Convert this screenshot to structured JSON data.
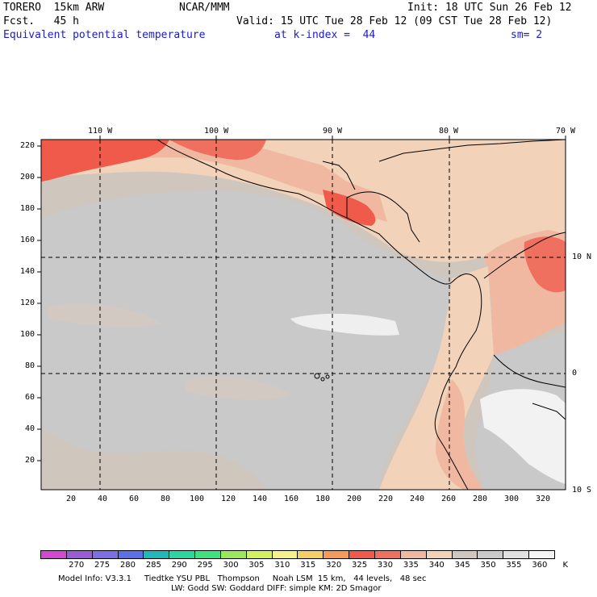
{
  "header": {
    "model": "TORERO  15km ARW",
    "org": "NCAR/MMM",
    "init": "Init: 18 UTC Sun 26 Feb 12",
    "fcst": "Fcst.   45 h",
    "valid": "Valid: 15 UTC Tue 28 Feb 12 (09 CST Tue 28 Feb 12)",
    "field": "Equivalent potential temperature",
    "level": "at k-index =  44",
    "smooth": "sm= 2"
  },
  "map": {
    "lon_labels": [
      "110 W",
      "100 W",
      "90 W",
      "80 W",
      "70 W"
    ],
    "lat_labels": [
      "10 N",
      "0",
      "10 S"
    ],
    "y_ticks": [
      "220",
      "200",
      "180",
      "160",
      "140",
      "120",
      "100",
      "80",
      "60",
      "40",
      "20"
    ],
    "x_ticks": [
      "20",
      "40",
      "60",
      "80",
      "100",
      "120",
      "140",
      "160",
      "180",
      "200",
      "220",
      "240",
      "260",
      "280",
      "300",
      "320"
    ]
  },
  "colorbar": {
    "colors": [
      "#d148d1",
      "#9b5bd6",
      "#7d6fe3",
      "#5a6fe8",
      "#23b8b8",
      "#2bd6a0",
      "#3fe07d",
      "#9ce85a",
      "#d4f060",
      "#f4f08a",
      "#f5cf66",
      "#f59a5a",
      "#f05a4a",
      "#f07060",
      "#f0b8a0",
      "#f2d2b8",
      "#cfc6bd",
      "#c9c9c9",
      "#e0e0e0",
      "#f4f4f4"
    ],
    "labels": [
      "270",
      "275",
      "280",
      "285",
      "290",
      "295",
      "300",
      "305",
      "310",
      "315",
      "320",
      "325",
      "330",
      "335",
      "340",
      "345",
      "350",
      "355",
      "360",
      "K"
    ]
  },
  "footer": {
    "line1": "Model Info: V3.3.1     Tiedtke YSU PBL   Thompson     Noah LSM  15 km,   44 levels,   48 sec",
    "line2": "LW: Godd SW: Goddard DIFF: simple KM: 2D Smagor"
  }
}
